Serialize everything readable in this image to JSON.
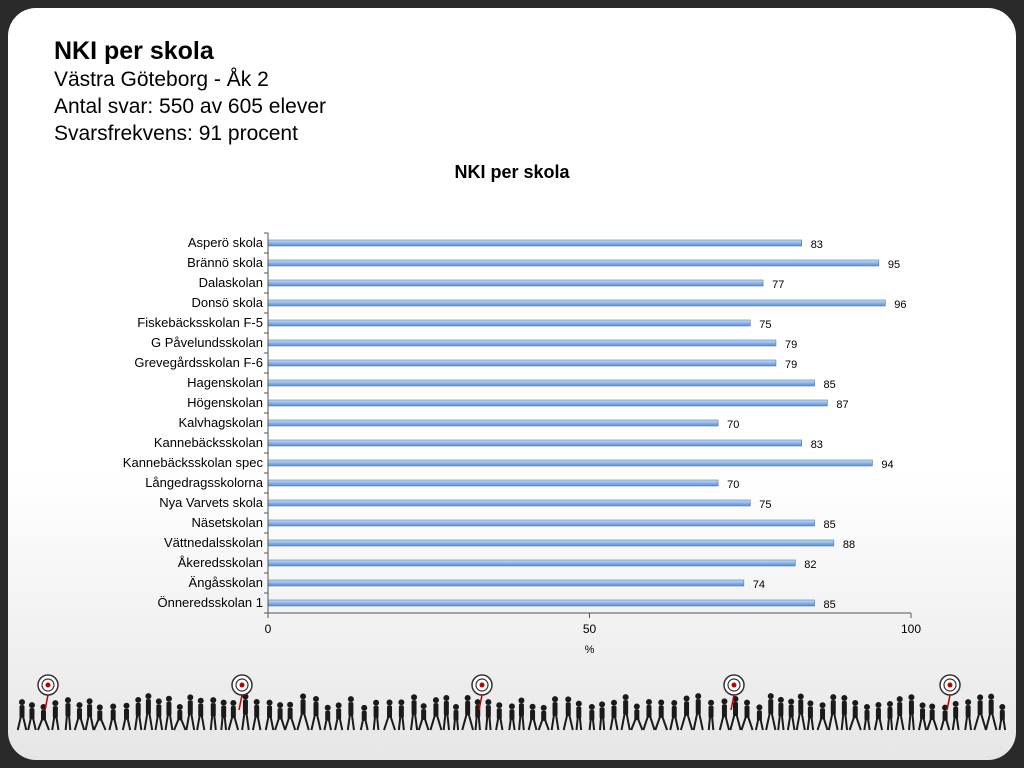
{
  "header": {
    "title": "NKI per skola",
    "subtitle": "Västra Göteborg - Åk 2",
    "responses": "Antal svar: 550 av 605 elever",
    "rate": "Svarsfrekvens: 91 procent"
  },
  "colors": {
    "bar": "#8fb4e3",
    "bar_edge": "#4a7ebb",
    "frame": "#2a2a2a",
    "target": "#c00000"
  },
  "chart_data": {
    "type": "bar",
    "orientation": "horizontal",
    "title": "NKI per skola",
    "xlabel": "%",
    "ylabel": "",
    "xlim": [
      0,
      100
    ],
    "xticks": [
      0,
      50,
      100
    ],
    "grid": false,
    "legend": "none",
    "categories": [
      "Asperö skola",
      "Brännö skola",
      "Dalaskolan",
      "Donsö skola",
      "Fiskebäcksskolan F-5",
      "G Påvelundsskolan",
      "Grevegårdsskolan F-6",
      "Hagenskolan",
      "Högenskolan",
      "Kalvhagskolan",
      "Kannebäcksskolan",
      "Kannebäcksskolan spec",
      "Långedragsskolorna",
      "Nya Varvets skola",
      "Näsetskolan",
      "Vättnedalsskolan",
      "Åkeredsskolan",
      "Ängåsskolan",
      "Önneredsskolan 1"
    ],
    "values": [
      83,
      95,
      77,
      96,
      75,
      79,
      79,
      85,
      87,
      70,
      83,
      94,
      70,
      75,
      85,
      88,
      82,
      74,
      85
    ]
  }
}
